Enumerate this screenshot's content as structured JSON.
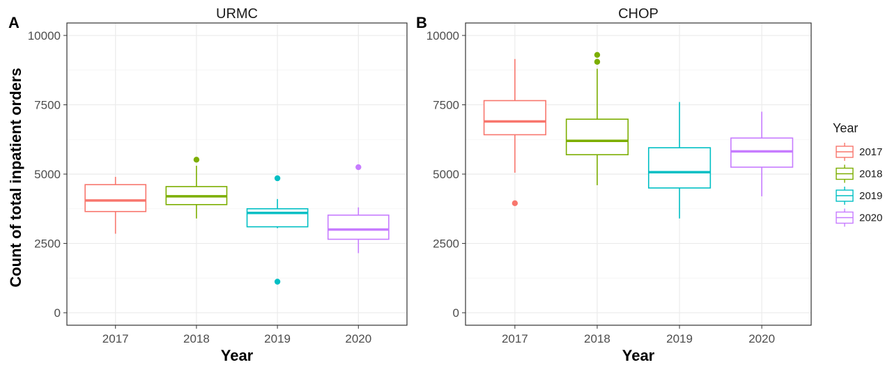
{
  "y_axis_title": "Count of total inpatient orders",
  "legend": {
    "title": "Year",
    "placement": "right",
    "items": [
      {
        "label": "2017",
        "color": "#F8766D"
      },
      {
        "label": "2018",
        "color": "#7CAE00"
      },
      {
        "label": "2019",
        "color": "#00BFC4"
      },
      {
        "label": "2020",
        "color": "#C77CFF"
      }
    ]
  },
  "chart_data": [
    {
      "type": "box",
      "tag": "A",
      "title": "URMC",
      "xlabel": "Year",
      "ylabel": "Count of total inpatient orders",
      "ylim": [
        0,
        10000
      ],
      "yticks": [
        "0",
        "2500",
        "5000",
        "7500",
        "10000"
      ],
      "grid": true,
      "categories": [
        "2017",
        "2018",
        "2019",
        "2020"
      ],
      "boxes": [
        {
          "category": "2017",
          "whisker_low": 2850,
          "q1": 3650,
          "median": 4050,
          "q3": 4620,
          "whisker_high": 4900,
          "outliers": []
        },
        {
          "category": "2018",
          "whisker_low": 3400,
          "q1": 3900,
          "median": 4200,
          "q3": 4550,
          "whisker_high": 5300,
          "outliers": [
            5520
          ]
        },
        {
          "category": "2019",
          "whisker_low": 3050,
          "q1": 3100,
          "median": 3600,
          "q3": 3750,
          "whisker_high": 4100,
          "outliers": [
            4850,
            1120
          ]
        },
        {
          "category": "2020",
          "whisker_low": 2150,
          "q1": 2650,
          "median": 3000,
          "q3": 3520,
          "whisker_high": 3800,
          "outliers": [
            5250
          ]
        }
      ]
    },
    {
      "type": "box",
      "tag": "B",
      "title": "CHOP",
      "xlabel": "Year",
      "ylabel": "",
      "ylim": [
        0,
        10000
      ],
      "yticks": [
        "0",
        "2500",
        "5000",
        "7500",
        "10000"
      ],
      "grid": true,
      "categories": [
        "2017",
        "2018",
        "2019",
        "2020"
      ],
      "boxes": [
        {
          "category": "2017",
          "whisker_low": 5050,
          "q1": 6420,
          "median": 6900,
          "q3": 7650,
          "whisker_high": 9150,
          "outliers": [
            3950
          ]
        },
        {
          "category": "2018",
          "whisker_low": 4600,
          "q1": 5700,
          "median": 6200,
          "q3": 6980,
          "whisker_high": 8800,
          "outliers": [
            9050,
            9300
          ]
        },
        {
          "category": "2019",
          "whisker_low": 3400,
          "q1": 4500,
          "median": 5070,
          "q3": 5950,
          "whisker_high": 7600,
          "outliers": []
        },
        {
          "category": "2020",
          "whisker_low": 4200,
          "q1": 5250,
          "median": 5820,
          "q3": 6300,
          "whisker_high": 7250,
          "outliers": []
        }
      ]
    }
  ]
}
